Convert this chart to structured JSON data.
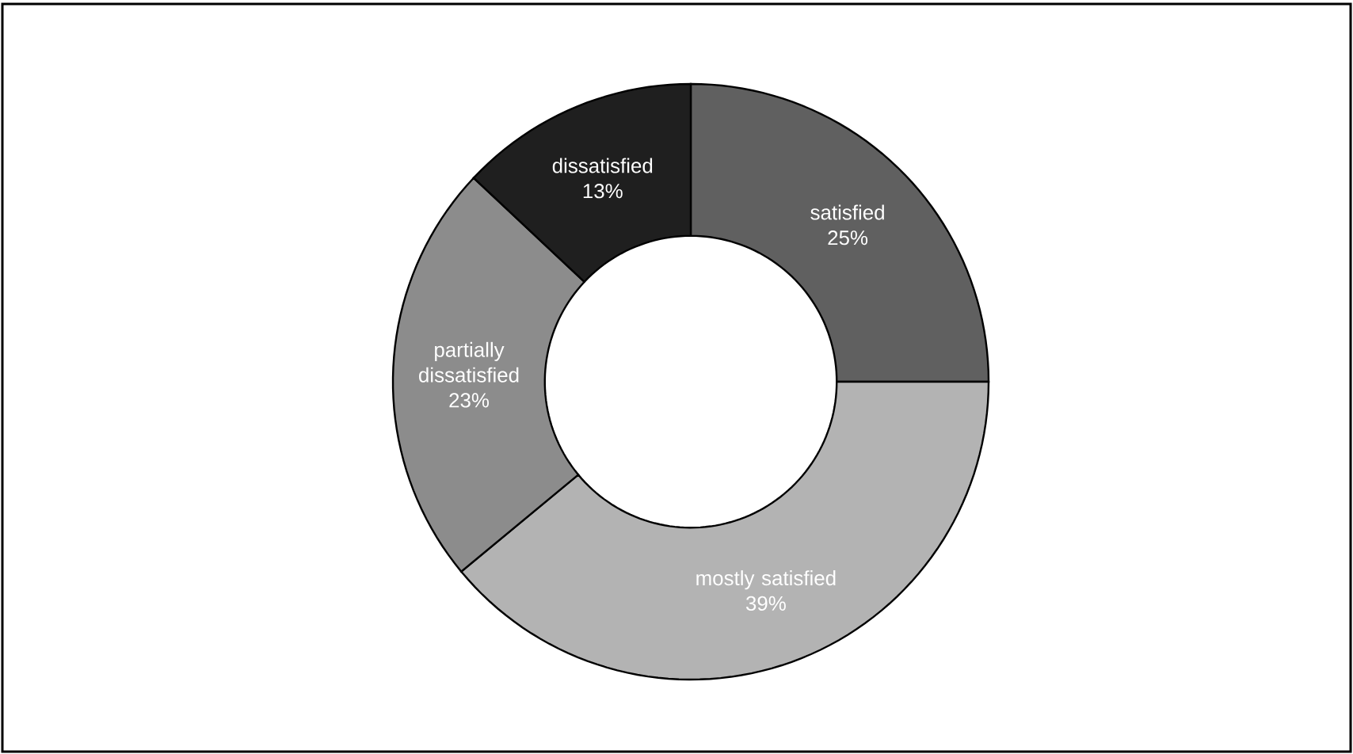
{
  "chart_data": {
    "type": "donut",
    "categories": [
      "satisfied",
      "mostly satisfied",
      "partially dissatisfied",
      "dissatisfied"
    ],
    "values": [
      25,
      39,
      23,
      13
    ],
    "colors": [
      "#606060",
      "#b3b3b3",
      "#8c8c8c",
      "#1f1f1f"
    ],
    "value_labels": [
      "25%",
      "39%",
      "23%",
      "13%"
    ]
  }
}
